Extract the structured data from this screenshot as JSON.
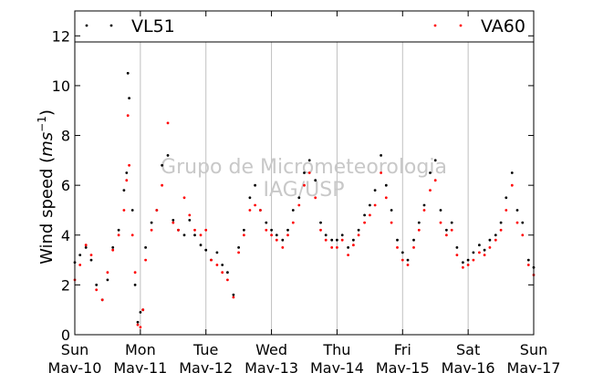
{
  "chart_data": {
    "type": "scatter",
    "title": "",
    "xlabel": "",
    "ylabel": "Wind speed (ms⁻¹)",
    "ylabel_parts": {
      "base": "Wind speed (",
      "unit": "ms",
      "exponent": "−1",
      "close": ")"
    },
    "ylim": [
      0,
      13
    ],
    "yticks": [
      0,
      2,
      4,
      6,
      8,
      10,
      12
    ],
    "xlim": [
      "2018-05-10",
      "2018-05-17"
    ],
    "xticks": [
      {
        "day": "Sun",
        "date": "May-10"
      },
      {
        "day": "Mon",
        "date": "May-11"
      },
      {
        "day": "Tue",
        "date": "May-12"
      },
      {
        "day": "Wed",
        "date": "May-13"
      },
      {
        "day": "Thu",
        "date": "May-14"
      },
      {
        "day": "Fri",
        "date": "May-15"
      },
      {
        "day": "Sat",
        "date": "May-16"
      },
      {
        "day": "Sun",
        "date": "May-17"
      }
    ],
    "grid": "vertical",
    "legend_placement": "top",
    "watermark": [
      "Grupo de Micrometeorologia",
      "IAG/USP"
    ],
    "series": [
      {
        "name": "VL51",
        "color": "#000000",
        "marker": "dot",
        "points": [
          [
            0.0,
            2.9
          ],
          [
            0.08,
            3.2
          ],
          [
            0.17,
            3.5
          ],
          [
            0.25,
            3.0
          ],
          [
            0.33,
            2.0
          ],
          [
            0.42,
            1.4
          ],
          [
            0.5,
            2.2
          ],
          [
            0.58,
            3.5
          ],
          [
            0.67,
            4.2
          ],
          [
            0.75,
            5.8
          ],
          [
            0.79,
            6.5
          ],
          [
            0.81,
            10.5
          ],
          [
            0.83,
            9.5
          ],
          [
            0.88,
            5.0
          ],
          [
            0.92,
            2.0
          ],
          [
            0.96,
            0.5
          ],
          [
            1.0,
            0.9
          ],
          [
            1.04,
            1.0
          ],
          [
            1.08,
            3.5
          ],
          [
            1.17,
            4.5
          ],
          [
            1.25,
            5.0
          ],
          [
            1.33,
            6.8
          ],
          [
            1.42,
            7.2
          ],
          [
            1.5,
            4.6
          ],
          [
            1.58,
            4.2
          ],
          [
            1.67,
            4.0
          ],
          [
            1.75,
            4.6
          ],
          [
            1.83,
            4.0
          ],
          [
            1.92,
            3.6
          ],
          [
            2.0,
            3.4
          ],
          [
            2.08,
            3.0
          ],
          [
            2.17,
            3.3
          ],
          [
            2.25,
            2.8
          ],
          [
            2.33,
            2.5
          ],
          [
            2.42,
            1.6
          ],
          [
            2.5,
            3.5
          ],
          [
            2.58,
            4.2
          ],
          [
            2.67,
            5.5
          ],
          [
            2.75,
            6.0
          ],
          [
            2.83,
            5.0
          ],
          [
            2.92,
            4.5
          ],
          [
            3.0,
            4.2
          ],
          [
            3.08,
            4.0
          ],
          [
            3.17,
            3.8
          ],
          [
            3.25,
            4.2
          ],
          [
            3.33,
            5.0
          ],
          [
            3.42,
            5.5
          ],
          [
            3.5,
            6.5
          ],
          [
            3.58,
            7.0
          ],
          [
            3.67,
            6.2
          ],
          [
            3.75,
            4.5
          ],
          [
            3.83,
            4.0
          ],
          [
            3.92,
            3.8
          ],
          [
            4.0,
            3.8
          ],
          [
            4.08,
            4.0
          ],
          [
            4.17,
            3.5
          ],
          [
            4.25,
            3.8
          ],
          [
            4.33,
            4.2
          ],
          [
            4.42,
            4.8
          ],
          [
            4.5,
            5.2
          ],
          [
            4.58,
            5.8
          ],
          [
            4.67,
            7.2
          ],
          [
            4.75,
            6.0
          ],
          [
            4.83,
            5.0
          ],
          [
            4.92,
            3.8
          ],
          [
            5.0,
            3.3
          ],
          [
            5.08,
            3.0
          ],
          [
            5.17,
            3.8
          ],
          [
            5.25,
            4.5
          ],
          [
            5.33,
            5.2
          ],
          [
            5.42,
            6.5
          ],
          [
            5.5,
            7.0
          ],
          [
            5.58,
            5.0
          ],
          [
            5.67,
            4.2
          ],
          [
            5.75,
            4.5
          ],
          [
            5.83,
            3.5
          ],
          [
            5.92,
            2.9
          ],
          [
            6.0,
            3.0
          ],
          [
            6.08,
            3.3
          ],
          [
            6.17,
            3.6
          ],
          [
            6.25,
            3.4
          ],
          [
            6.33,
            3.8
          ],
          [
            6.42,
            4.0
          ],
          [
            6.5,
            4.5
          ],
          [
            6.58,
            5.5
          ],
          [
            6.67,
            6.5
          ],
          [
            6.75,
            5.0
          ],
          [
            6.83,
            4.5
          ],
          [
            6.92,
            3.0
          ],
          [
            7.0,
            2.7
          ]
        ]
      },
      {
        "name": "VA60",
        "color": "#ff0000",
        "marker": "dot",
        "points": [
          [
            0.0,
            2.2
          ],
          [
            0.08,
            2.8
          ],
          [
            0.17,
            3.6
          ],
          [
            0.25,
            3.2
          ],
          [
            0.33,
            1.8
          ],
          [
            0.42,
            1.4
          ],
          [
            0.5,
            2.5
          ],
          [
            0.58,
            3.4
          ],
          [
            0.67,
            4.0
          ],
          [
            0.75,
            5.0
          ],
          [
            0.79,
            6.2
          ],
          [
            0.81,
            8.8
          ],
          [
            0.83,
            6.8
          ],
          [
            0.88,
            4.0
          ],
          [
            0.92,
            2.5
          ],
          [
            0.96,
            0.4
          ],
          [
            1.0,
            0.3
          ],
          [
            1.04,
            1.0
          ],
          [
            1.08,
            3.0
          ],
          [
            1.17,
            4.2
          ],
          [
            1.25,
            5.0
          ],
          [
            1.33,
            6.0
          ],
          [
            1.42,
            8.5
          ],
          [
            1.5,
            4.5
          ],
          [
            1.58,
            4.2
          ],
          [
            1.67,
            5.5
          ],
          [
            1.75,
            4.8
          ],
          [
            1.83,
            4.2
          ],
          [
            1.92,
            4.0
          ],
          [
            2.0,
            4.2
          ],
          [
            2.08,
            3.0
          ],
          [
            2.17,
            2.8
          ],
          [
            2.25,
            2.5
          ],
          [
            2.33,
            2.2
          ],
          [
            2.42,
            1.5
          ],
          [
            2.5,
            3.3
          ],
          [
            2.58,
            4.0
          ],
          [
            2.67,
            5.0
          ],
          [
            2.75,
            5.2
          ],
          [
            2.83,
            5.0
          ],
          [
            2.92,
            4.2
          ],
          [
            3.0,
            4.0
          ],
          [
            3.08,
            3.8
          ],
          [
            3.17,
            3.5
          ],
          [
            3.25,
            4.0
          ],
          [
            3.33,
            4.5
          ],
          [
            3.42,
            5.2
          ],
          [
            3.5,
            6.0
          ],
          [
            3.58,
            6.5
          ],
          [
            3.67,
            5.5
          ],
          [
            3.75,
            4.2
          ],
          [
            3.83,
            3.8
          ],
          [
            3.92,
            3.5
          ],
          [
            4.0,
            3.5
          ],
          [
            4.08,
            3.8
          ],
          [
            4.17,
            3.2
          ],
          [
            4.25,
            3.6
          ],
          [
            4.33,
            4.0
          ],
          [
            4.42,
            4.5
          ],
          [
            4.5,
            4.8
          ],
          [
            4.58,
            5.2
          ],
          [
            4.67,
            6.5
          ],
          [
            4.75,
            5.5
          ],
          [
            4.83,
            4.5
          ],
          [
            4.92,
            3.5
          ],
          [
            5.0,
            3.0
          ],
          [
            5.08,
            2.8
          ],
          [
            5.17,
            3.5
          ],
          [
            5.25,
            4.2
          ],
          [
            5.33,
            5.0
          ],
          [
            5.42,
            5.8
          ],
          [
            5.5,
            6.2
          ],
          [
            5.58,
            4.5
          ],
          [
            5.67,
            4.0
          ],
          [
            5.75,
            4.2
          ],
          [
            5.83,
            3.2
          ],
          [
            5.92,
            2.7
          ],
          [
            6.0,
            2.8
          ],
          [
            6.08,
            3.0
          ],
          [
            6.17,
            3.3
          ],
          [
            6.25,
            3.2
          ],
          [
            6.33,
            3.5
          ],
          [
            6.42,
            3.8
          ],
          [
            6.5,
            4.2
          ],
          [
            6.58,
            5.0
          ],
          [
            6.67,
            6.0
          ],
          [
            6.75,
            4.5
          ],
          [
            6.83,
            4.0
          ],
          [
            6.92,
            2.8
          ],
          [
            7.0,
            2.4
          ]
        ]
      }
    ]
  }
}
